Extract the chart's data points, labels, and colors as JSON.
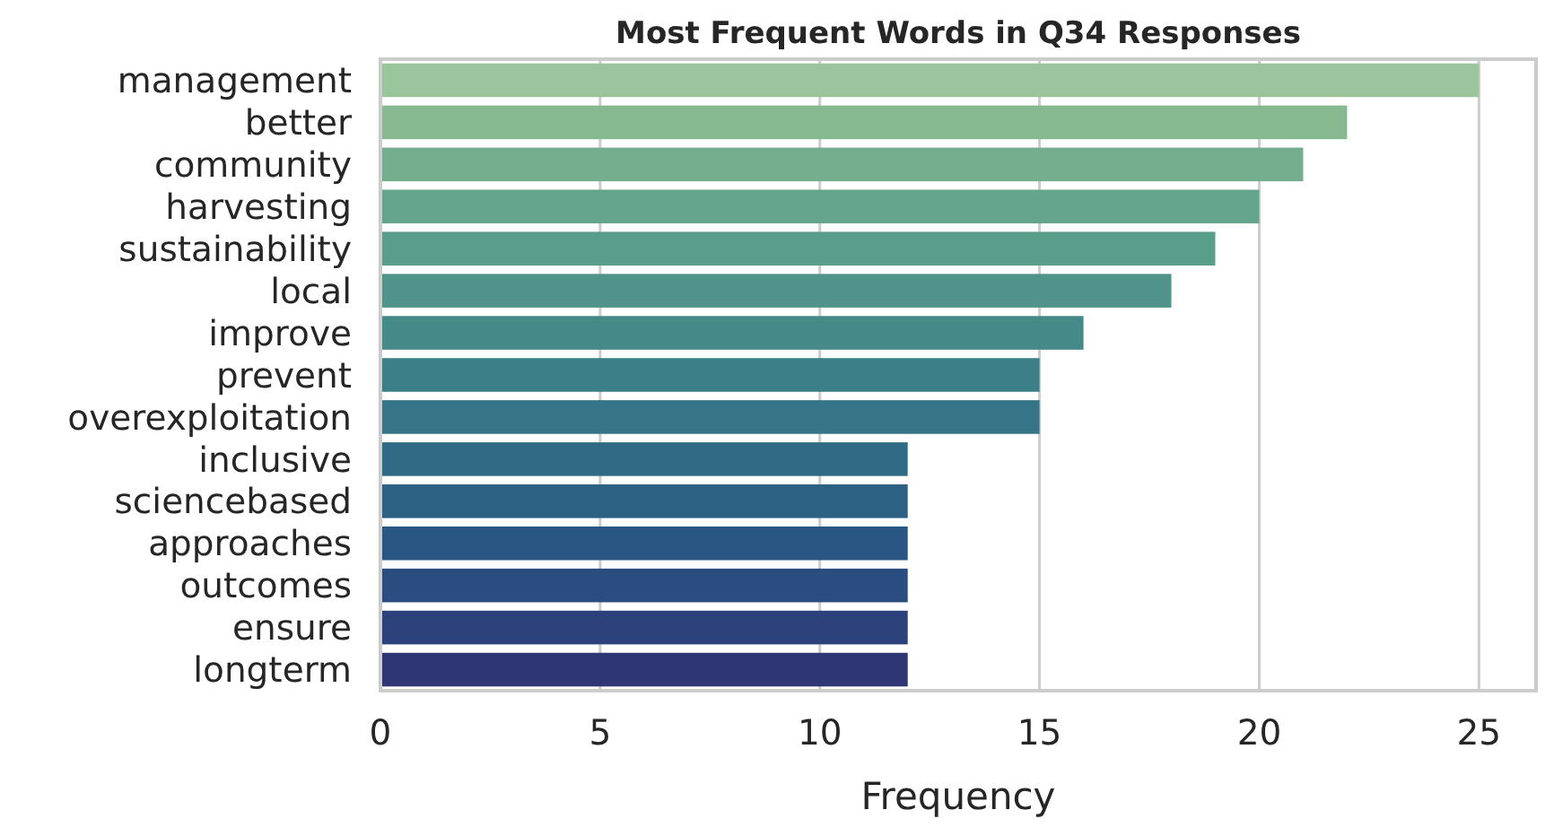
{
  "chart_data": {
    "type": "bar",
    "orientation": "horizontal",
    "title": "Most Frequent Words in Q34 Responses",
    "xlabel": "Frequency",
    "categories": [
      "management",
      "better",
      "community",
      "harvesting",
      "sustainability",
      "local",
      "improve",
      "prevent",
      "overexploitation",
      "inclusive",
      "sciencebased",
      "approaches",
      "outcomes",
      "ensure",
      "longterm"
    ],
    "values": [
      25,
      22,
      21,
      20,
      19,
      18,
      16,
      15,
      15,
      12,
      12,
      12,
      12,
      12,
      12
    ],
    "colors": [
      "#9bc59a",
      "#86b990",
      "#74ae8e",
      "#66a58d",
      "#599d8b",
      "#4f938a",
      "#458989",
      "#3c7f88",
      "#357587",
      "#306b86",
      "#2c6184",
      "#295682",
      "#2b4c7f",
      "#2d417b",
      "#2e3773"
    ],
    "xlim": [
      0,
      26.3
    ],
    "xticks": [
      0,
      5,
      10,
      15,
      20,
      25
    ],
    "grid": "x"
  }
}
